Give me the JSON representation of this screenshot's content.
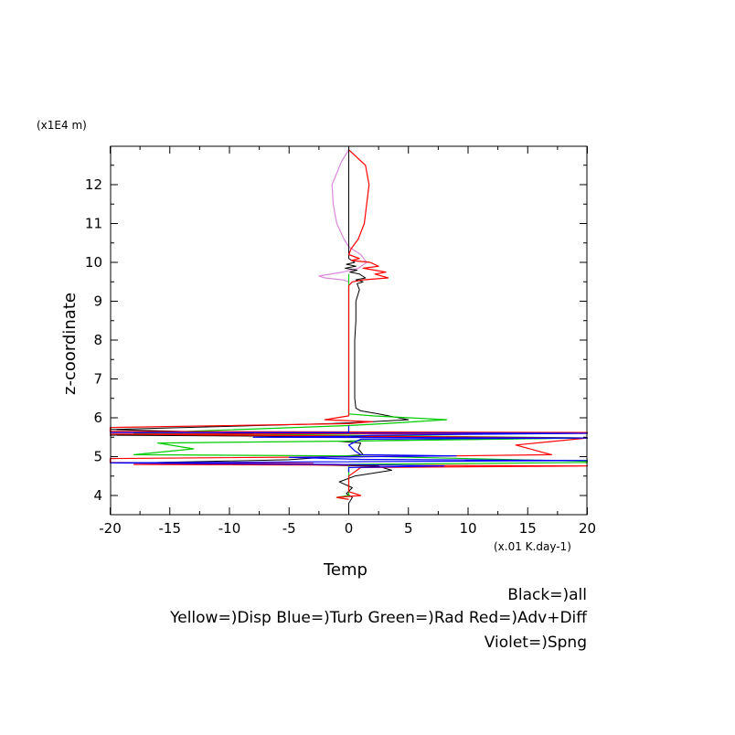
{
  "chart_data": {
    "type": "line",
    "title": "",
    "xlabel": "Temp",
    "ylabel": "z-coordinate",
    "x_unit": "(x.01 K.day-1)",
    "y_unit": "(x1E4 m)",
    "xlim": [
      -20,
      20
    ],
    "ylim": [
      3.5,
      12.9
    ],
    "x_ticks": [
      -20,
      -15,
      -10,
      -5,
      0,
      5,
      10,
      15,
      20
    ],
    "x_tick_labels": [
      "-20",
      "-15",
      "-10",
      "-5",
      "0",
      "5",
      "10",
      "15",
      "20"
    ],
    "y_ticks": [
      4,
      5,
      6,
      7,
      8,
      9,
      10,
      11,
      12
    ],
    "y_tick_labels": [
      "4",
      "5",
      "6",
      "7",
      "8",
      "9",
      "10",
      "11",
      "12"
    ],
    "legend_lines": [
      "Black=)all",
      "Yellow=)Disp Blue=)Turb Green=)Rad Red=)Adv+Diff",
      "Violet=)Spng"
    ],
    "grid": false,
    "legend_position": "bottom-right",
    "colors": {
      "all": "#000000",
      "turb": "#0000ff",
      "rad": "#00cc00",
      "adv_diff": "#ff0000",
      "spng": "#dd88dd"
    },
    "series": [
      {
        "key": "all",
        "points": [
          [
            0,
            12.9
          ],
          [
            0,
            10.1
          ],
          [
            0.5,
            10.0
          ],
          [
            -0.2,
            9.95
          ],
          [
            0.6,
            9.9
          ],
          [
            -0.3,
            9.85
          ],
          [
            0.7,
            9.8
          ],
          [
            0.1,
            9.75
          ],
          [
            0.9,
            9.7
          ],
          [
            1.4,
            9.6
          ],
          [
            0.6,
            9.55
          ],
          [
            1.2,
            9.5
          ],
          [
            0.7,
            9.45
          ],
          [
            0.9,
            9.3
          ],
          [
            0.6,
            9.0
          ],
          [
            0.6,
            8.5
          ],
          [
            0.5,
            8.0
          ],
          [
            0.5,
            7.5
          ],
          [
            0.5,
            7.0
          ],
          [
            0.5,
            6.5
          ],
          [
            0.6,
            6.25
          ],
          [
            1.0,
            6.18
          ],
          [
            2.5,
            6.1
          ],
          [
            5.0,
            5.95
          ],
          [
            2.0,
            5.9
          ],
          [
            -1.5,
            5.85
          ],
          [
            -20,
            5.7
          ],
          [
            -8,
            5.6
          ],
          [
            -20,
            5.55
          ],
          [
            20,
            5.48
          ],
          [
            -1,
            5.4
          ],
          [
            1,
            5.35
          ],
          [
            0.8,
            5.2
          ],
          [
            1.2,
            5.05
          ],
          [
            -5,
            4.92
          ],
          [
            -16,
            4.85
          ],
          [
            -5,
            4.8
          ],
          [
            2.5,
            4.75
          ],
          [
            3.6,
            4.65
          ],
          [
            0.5,
            4.5
          ],
          [
            -0.8,
            4.35
          ],
          [
            0.3,
            4.2
          ],
          [
            -0.2,
            4.05
          ],
          [
            0.3,
            3.95
          ],
          [
            0,
            3.8
          ],
          [
            0,
            3.55
          ]
        ]
      },
      {
        "key": "turb",
        "points": [
          [
            0,
            5.8
          ],
          [
            0,
            5.62
          ],
          [
            -20,
            5.62
          ],
          [
            20,
            5.6
          ],
          [
            2,
            5.55
          ],
          [
            0,
            5.52
          ],
          [
            -8,
            5.5
          ],
          [
            20,
            5.48
          ],
          [
            1,
            5.45
          ],
          [
            0,
            5.3
          ],
          [
            0.5,
            5.15
          ],
          [
            1,
            5.05
          ],
          [
            9,
            5.02
          ],
          [
            -5,
            4.98
          ],
          [
            1,
            4.93
          ],
          [
            20,
            4.9
          ],
          [
            -5,
            4.86
          ],
          [
            -20,
            4.84
          ],
          [
            -1,
            4.8
          ],
          [
            8,
            4.76
          ],
          [
            0,
            4.72
          ],
          [
            0,
            4.6
          ]
        ]
      },
      {
        "key": "rad",
        "points": [
          [
            0,
            9.7
          ],
          [
            0,
            9.6
          ],
          [
            0,
            9.0
          ],
          [
            0,
            8.0
          ],
          [
            0,
            7.0
          ],
          [
            0,
            6.1
          ],
          [
            2,
            6.05
          ],
          [
            8.2,
            5.95
          ],
          [
            3,
            5.85
          ],
          [
            0,
            5.8
          ],
          [
            -18,
            5.6
          ],
          [
            0,
            5.55
          ],
          [
            20,
            5.48
          ],
          [
            0,
            5.4
          ],
          [
            -16,
            5.35
          ],
          [
            -13,
            5.2
          ],
          [
            -18,
            5.05
          ],
          [
            0,
            5.02
          ],
          [
            20,
            4.88
          ],
          [
            20,
            4.85
          ],
          [
            0,
            4.8
          ],
          [
            0,
            4.6
          ],
          [
            0,
            4.0
          ],
          [
            -1,
            3.95
          ],
          [
            0,
            3.9
          ]
        ]
      },
      {
        "key": "adv_diff",
        "points": [
          [
            0,
            12.9
          ],
          [
            1.4,
            12.5
          ],
          [
            1.7,
            12.0
          ],
          [
            1.5,
            11.5
          ],
          [
            1.3,
            11.0
          ],
          [
            0.8,
            10.6
          ],
          [
            0.2,
            10.35
          ],
          [
            0,
            10.2
          ],
          [
            0.9,
            10.1
          ],
          [
            0.2,
            10.05
          ],
          [
            1.8,
            10.0
          ],
          [
            2.5,
            9.9
          ],
          [
            1.2,
            9.85
          ],
          [
            3.1,
            9.75
          ],
          [
            2.2,
            9.7
          ],
          [
            3.3,
            9.6
          ],
          [
            1.2,
            9.55
          ],
          [
            0.3,
            9.5
          ],
          [
            0,
            9.4
          ],
          [
            0,
            9.0
          ],
          [
            0,
            8.0
          ],
          [
            0,
            7.0
          ],
          [
            0,
            6.05
          ],
          [
            -2,
            5.95
          ],
          [
            2,
            5.9
          ],
          [
            0,
            5.85
          ],
          [
            -20,
            5.75
          ],
          [
            -20,
            5.65
          ],
          [
            20,
            5.62
          ],
          [
            20,
            5.6
          ],
          [
            -20,
            5.58
          ],
          [
            20,
            5.48
          ],
          [
            14,
            5.3
          ],
          [
            17,
            5.05
          ],
          [
            9,
            5.02
          ],
          [
            -20,
            4.95
          ],
          [
            -20,
            4.85
          ],
          [
            -3,
            4.82
          ],
          [
            -18,
            4.8
          ],
          [
            20,
            4.76
          ],
          [
            1,
            4.72
          ],
          [
            0,
            4.5
          ],
          [
            0,
            4.1
          ],
          [
            1,
            4.0
          ],
          [
            -1,
            3.95
          ],
          [
            0,
            3.9
          ]
        ]
      },
      {
        "key": "spng",
        "points": [
          [
            0,
            12.9
          ],
          [
            -0.6,
            12.6
          ],
          [
            -1.4,
            12.0
          ],
          [
            -1.3,
            11.5
          ],
          [
            -1.0,
            11.0
          ],
          [
            -0.4,
            10.6
          ],
          [
            0,
            10.4
          ],
          [
            1.0,
            10.2
          ],
          [
            1.5,
            10.0
          ],
          [
            0.8,
            9.85
          ],
          [
            -0.5,
            9.75
          ],
          [
            -2.5,
            9.65
          ],
          [
            -2,
            9.6
          ],
          [
            -0.5,
            9.55
          ],
          [
            0,
            9.5
          ]
        ]
      }
    ]
  }
}
